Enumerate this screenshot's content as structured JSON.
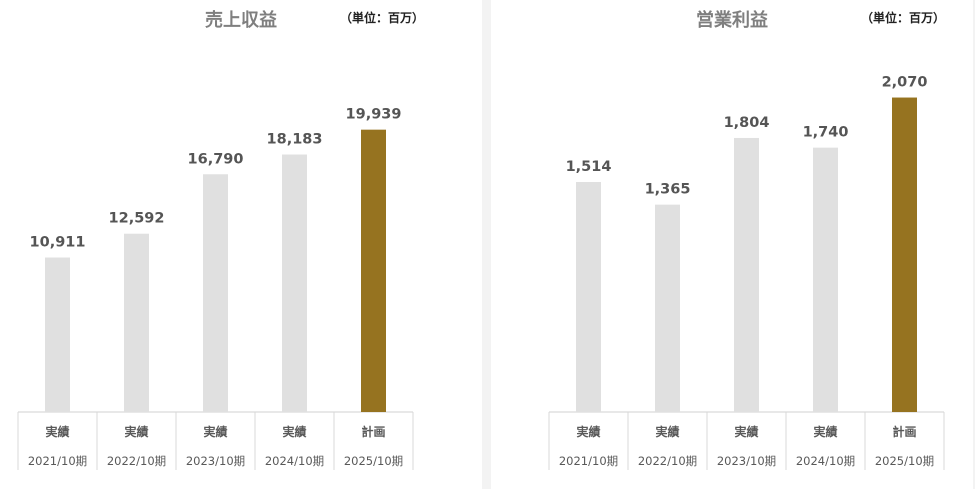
{
  "chart_data": [
    {
      "type": "bar",
      "title": "売上収益",
      "unit_label": "（単位：百万）",
      "categories": [
        "2021/10期",
        "2022/10期",
        "2023/10期",
        "2024/10期",
        "2025/10期"
      ],
      "category_types": [
        "実績",
        "実績",
        "実績",
        "実績",
        "計画"
      ],
      "values": [
        10911,
        12592,
        16790,
        18183,
        19939
      ],
      "value_labels": [
        "10,911",
        "12,592",
        "16,790",
        "18,183",
        "19,939"
      ],
      "ylim": [
        0,
        25000
      ],
      "colors": [
        "#e0e0e0",
        "#e0e0e0",
        "#e0e0e0",
        "#e0e0e0",
        "#967320"
      ]
    },
    {
      "type": "bar",
      "title": "営業利益",
      "unit_label": "（単位：百万）",
      "categories": [
        "2021/10期",
        "2022/10期",
        "2023/10期",
        "2024/10期",
        "2025/10期"
      ],
      "category_types": [
        "実績",
        "実績",
        "実績",
        "実績",
        "計画"
      ],
      "values": [
        1514,
        1365,
        1804,
        1740,
        2070
      ],
      "value_labels": [
        "1,514",
        "1,365",
        "1,804",
        "1,740",
        "2,070"
      ],
      "ylim": [
        0,
        2350
      ],
      "colors": [
        "#e0e0e0",
        "#e0e0e0",
        "#e0e0e0",
        "#e0e0e0",
        "#967320"
      ]
    }
  ]
}
